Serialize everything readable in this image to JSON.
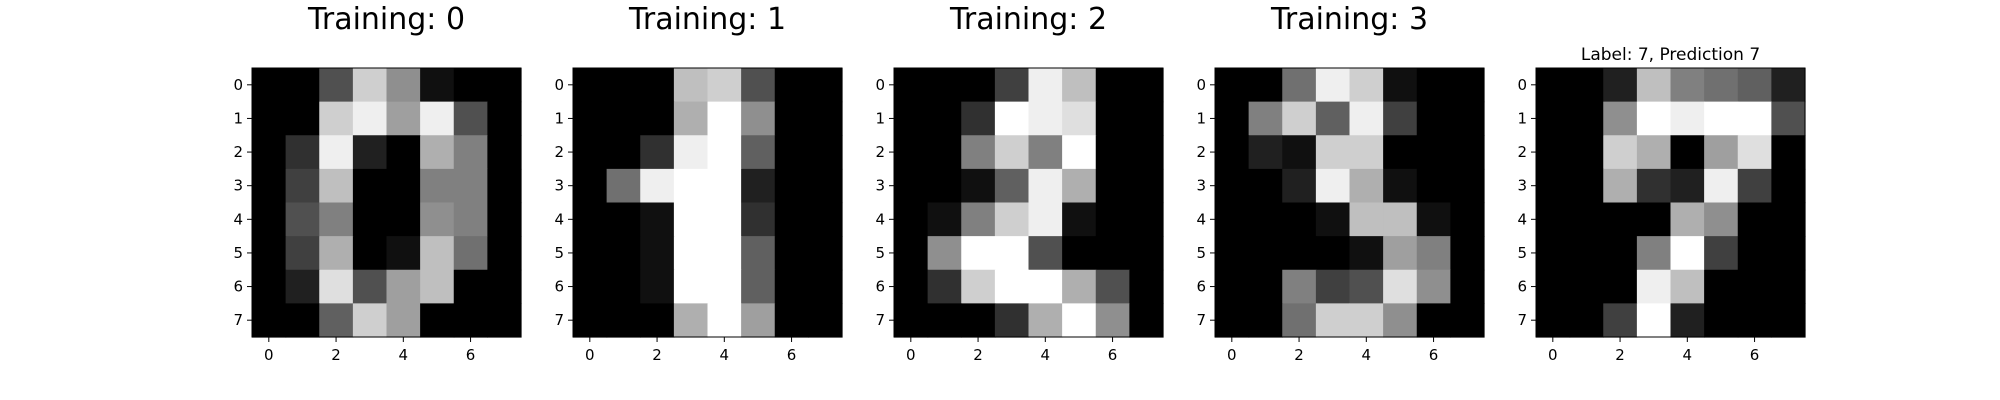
{
  "chart_data": [
    {
      "type": "heatmap",
      "title": "Training: 0",
      "xticks": [
        "0",
        "2",
        "4",
        "6"
      ],
      "yticks": [
        "0",
        "1",
        "2",
        "3",
        "4",
        "5",
        "6",
        "7"
      ],
      "colormap": "gray",
      "vmin": 0,
      "vmax": 16,
      "values": [
        [
          0,
          0,
          5,
          13,
          9,
          1,
          0,
          0
        ],
        [
          0,
          0,
          13,
          15,
          10,
          15,
          5,
          0
        ],
        [
          0,
          3,
          15,
          2,
          0,
          11,
          8,
          0
        ],
        [
          0,
          4,
          12,
          0,
          0,
          8,
          8,
          0
        ],
        [
          0,
          5,
          8,
          0,
          0,
          9,
          8,
          0
        ],
        [
          0,
          4,
          11,
          0,
          1,
          12,
          7,
          0
        ],
        [
          0,
          2,
          14,
          5,
          10,
          12,
          0,
          0
        ],
        [
          0,
          0,
          6,
          13,
          10,
          0,
          0,
          0
        ]
      ]
    },
    {
      "type": "heatmap",
      "title": "Training: 1",
      "xticks": [
        "0",
        "2",
        "4",
        "6"
      ],
      "yticks": [
        "0",
        "1",
        "2",
        "3",
        "4",
        "5",
        "6",
        "7"
      ],
      "colormap": "gray",
      "vmin": 0,
      "vmax": 16,
      "values": [
        [
          0,
          0,
          0,
          12,
          13,
          5,
          0,
          0
        ],
        [
          0,
          0,
          0,
          11,
          16,
          9,
          0,
          0
        ],
        [
          0,
          0,
          3,
          15,
          16,
          6,
          0,
          0
        ],
        [
          0,
          7,
          15,
          16,
          16,
          2,
          0,
          0
        ],
        [
          0,
          0,
          1,
          16,
          16,
          3,
          0,
          0
        ],
        [
          0,
          0,
          1,
          16,
          16,
          6,
          0,
          0
        ],
        [
          0,
          0,
          1,
          16,
          16,
          6,
          0,
          0
        ],
        [
          0,
          0,
          0,
          11,
          16,
          10,
          0,
          0
        ]
      ]
    },
    {
      "type": "heatmap",
      "title": "Training: 2",
      "xticks": [
        "0",
        "2",
        "4",
        "6"
      ],
      "yticks": [
        "0",
        "1",
        "2",
        "3",
        "4",
        "5",
        "6",
        "7"
      ],
      "colormap": "gray",
      "vmin": 0,
      "vmax": 16,
      "values": [
        [
          0,
          0,
          0,
          4,
          15,
          12,
          0,
          0
        ],
        [
          0,
          0,
          3,
          16,
          15,
          14,
          0,
          0
        ],
        [
          0,
          0,
          8,
          13,
          8,
          16,
          0,
          0
        ],
        [
          0,
          0,
          1,
          6,
          15,
          11,
          0,
          0
        ],
        [
          0,
          1,
          8,
          13,
          15,
          1,
          0,
          0
        ],
        [
          0,
          9,
          16,
          16,
          5,
          0,
          0,
          0
        ],
        [
          0,
          3,
          13,
          16,
          16,
          11,
          5,
          0
        ],
        [
          0,
          0,
          0,
          3,
          11,
          16,
          9,
          0
        ]
      ]
    },
    {
      "type": "heatmap",
      "title": "Training: 3",
      "xticks": [
        "0",
        "2",
        "4",
        "6"
      ],
      "yticks": [
        "0",
        "1",
        "2",
        "3",
        "4",
        "5",
        "6",
        "7"
      ],
      "colormap": "gray",
      "vmin": 0,
      "vmax": 16,
      "values": [
        [
          0,
          0,
          7,
          15,
          13,
          1,
          0,
          0
        ],
        [
          0,
          8,
          13,
          6,
          15,
          4,
          0,
          0
        ],
        [
          0,
          2,
          1,
          13,
          13,
          0,
          0,
          0
        ],
        [
          0,
          0,
          2,
          15,
          11,
          1,
          0,
          0
        ],
        [
          0,
          0,
          0,
          1,
          12,
          12,
          1,
          0
        ],
        [
          0,
          0,
          0,
          0,
          1,
          10,
          8,
          0
        ],
        [
          0,
          0,
          8,
          4,
          5,
          14,
          9,
          0
        ],
        [
          0,
          0,
          7,
          13,
          13,
          9,
          0,
          0
        ]
      ]
    },
    {
      "type": "heatmap",
      "title": "Label: 7, Prediction 7",
      "xticks": [
        "0",
        "2",
        "4",
        "6"
      ],
      "yticks": [
        "0",
        "1",
        "2",
        "3",
        "4",
        "5",
        "6",
        "7"
      ],
      "colormap": "gray",
      "vmin": 0,
      "vmax": 16,
      "values": [
        [
          0,
          0,
          2,
          12,
          8,
          7,
          6,
          2
        ],
        [
          0,
          0,
          9,
          16,
          15,
          16,
          16,
          5
        ],
        [
          0,
          0,
          13,
          11,
          0,
          10,
          14,
          0
        ],
        [
          0,
          0,
          11,
          3,
          2,
          15,
          4,
          0
        ],
        [
          0,
          0,
          0,
          0,
          11,
          9,
          0,
          0
        ],
        [
          0,
          0,
          0,
          8,
          16,
          4,
          0,
          0
        ],
        [
          0,
          0,
          0,
          15,
          12,
          0,
          0,
          0
        ],
        [
          0,
          0,
          4,
          16,
          2,
          0,
          0,
          0
        ]
      ]
    }
  ]
}
